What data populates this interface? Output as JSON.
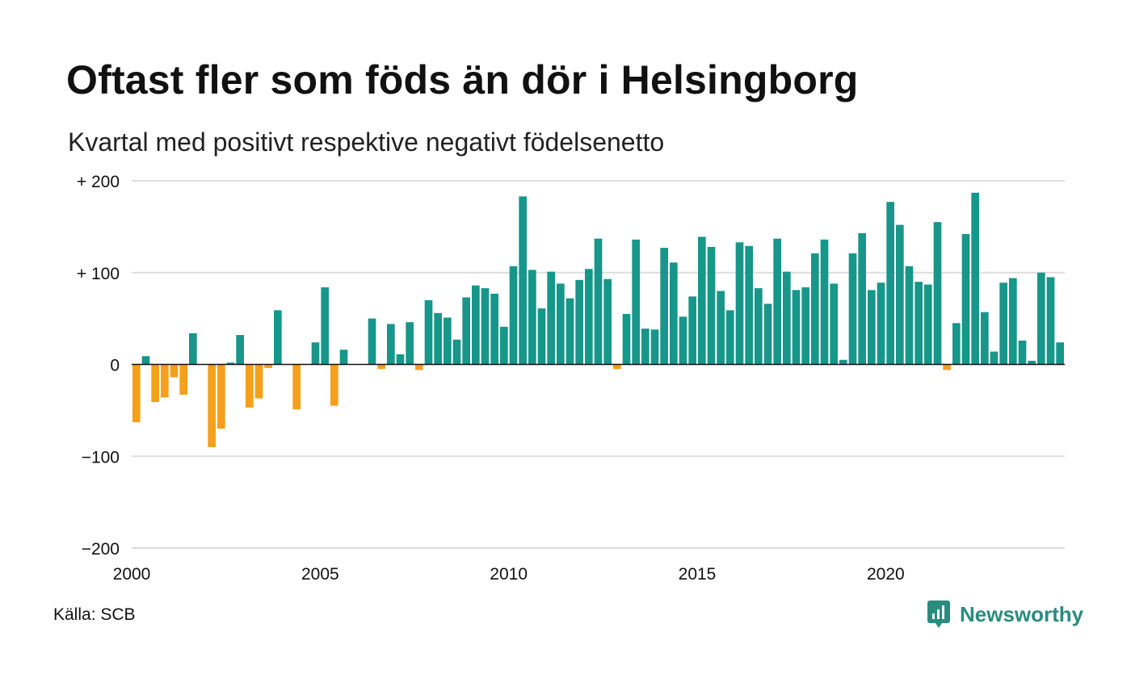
{
  "title": "Oftast fler som föds än dör i Helsingborg",
  "subtitle": "Kvartal med positivt respektive negativt födelsenetto",
  "source": "Källa: SCB",
  "brand": "Newsworthy",
  "colors": {
    "positive": "#17968a",
    "negative": "#f5a01a",
    "grid": "#dddddd",
    "zero_line": "#111111",
    "brand": "#2a8c7e"
  },
  "chart_data": {
    "type": "bar",
    "title": "Oftast fler som föds än dör i Helsingborg",
    "subtitle": "Kvartal med positivt respektive negativt födelsenetto",
    "xlabel": "",
    "ylabel": "",
    "ylim": [
      -200,
      200
    ],
    "y_ticks": [
      200,
      100,
      0,
      -100,
      -200
    ],
    "y_tick_labels": [
      "+ 200",
      "+ 100",
      "0",
      "−100",
      "−200"
    ],
    "x_ticks": [
      2000,
      2005,
      2010,
      2015,
      2020
    ],
    "x_tick_labels": [
      "2000",
      "2005",
      "2010",
      "2015",
      "2020"
    ],
    "grid": true,
    "start_year": 2000,
    "periods_per_year": 4,
    "values": [
      -63,
      9,
      -41,
      -36,
      -14,
      -33,
      34,
      0,
      -90,
      -70,
      2,
      32,
      -47,
      -37,
      -4,
      59,
      0,
      -49,
      0,
      24,
      84,
      -45,
      16,
      0,
      0,
      50,
      -5,
      44,
      11,
      46,
      -6,
      70,
      56,
      51,
      27,
      73,
      86,
      83,
      77,
      41,
      107,
      183,
      103,
      61,
      101,
      88,
      72,
      92,
      104,
      137,
      93,
      -5,
      55,
      136,
      39,
      38,
      127,
      111,
      52,
      74,
      139,
      128,
      80,
      59,
      133,
      129,
      83,
      66,
      137,
      101,
      81,
      84,
      121,
      136,
      88,
      5,
      121,
      143,
      81,
      89,
      177,
      152,
      107,
      90,
      87,
      155,
      -6,
      45,
      142,
      187,
      57,
      14,
      89,
      94,
      26,
      4,
      100,
      95,
      24
    ]
  }
}
